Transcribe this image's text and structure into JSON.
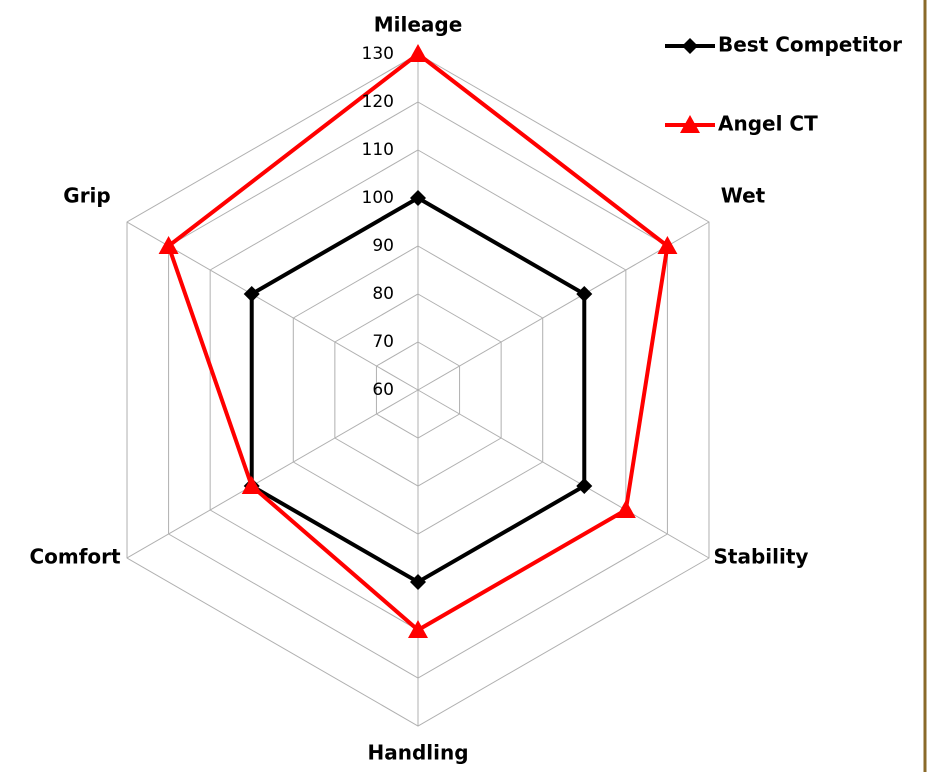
{
  "chart_data": {
    "type": "radar",
    "categories": [
      "Mileage",
      "Wet",
      "Stability",
      "Handling",
      "Comfort",
      "Grip"
    ],
    "series": [
      {
        "name": "Best Competitor",
        "color": "#000000",
        "marker": "diamond",
        "values": [
          100,
          100,
          100,
          100,
          100,
          100
        ]
      },
      {
        "name": "Angel CT",
        "color": "#ff0000",
        "marker": "triangle",
        "values": [
          130,
          120,
          110,
          110,
          100,
          120
        ]
      }
    ],
    "rlim": [
      60,
      130
    ],
    "rticks": [
      60,
      70,
      80,
      90,
      100,
      110,
      120,
      130
    ],
    "grid": true,
    "legend": "top-right"
  }
}
